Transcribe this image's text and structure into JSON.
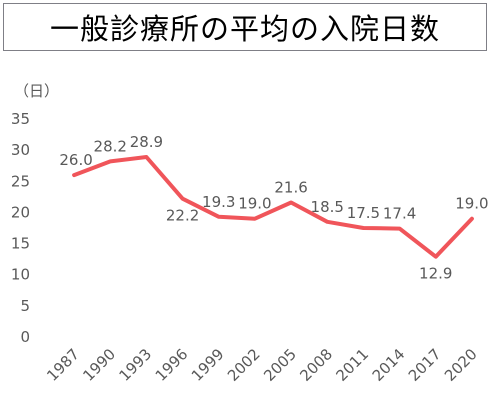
{
  "title": "一般診療所の平均の入院日数",
  "chart_data": {
    "type": "line",
    "title": "一般診療所の平均の入院日数",
    "unit_label": "（日）",
    "categories": [
      "1987",
      "1990",
      "1993",
      "1996",
      "1999",
      "2002",
      "2005",
      "2008",
      "2011",
      "2014",
      "2017",
      "2020"
    ],
    "series": [
      {
        "values": [
          26.0,
          28.2,
          28.9,
          22.2,
          19.3,
          19.0,
          21.6,
          18.5,
          17.5,
          17.4,
          12.9,
          19.0
        ]
      }
    ],
    "data_labels": [
      "26.0",
      "28.2",
      "28.9",
      "22.2",
      "19.3",
      "19.0",
      "21.6",
      "18.5",
      "17.5",
      "17.4",
      "12.9",
      "19.0"
    ],
    "yticks": [
      "0",
      "5",
      "10",
      "15",
      "20",
      "25",
      "30",
      "35"
    ],
    "ylim": [
      0,
      35
    ],
    "grid": false,
    "line_color": "#f0555a"
  }
}
